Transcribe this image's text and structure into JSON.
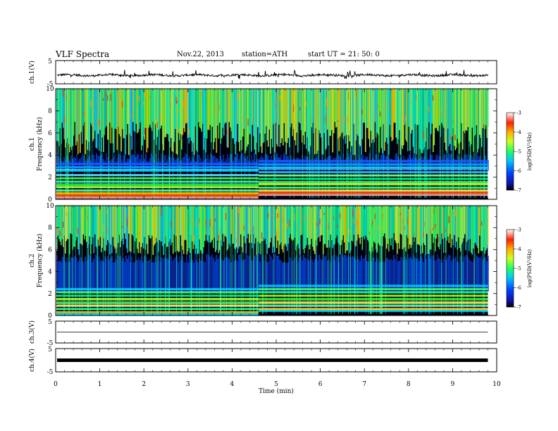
{
  "header": {
    "title": "VLF  Spectra",
    "date": "Nov.22, 2013",
    "station": "station=ATH",
    "start": "start  UT  =   21: 50: 0"
  },
  "chart_data": [
    {
      "type": "line",
      "panel": "ch1-waveform",
      "ylabel": "ch.1(V)",
      "ylim": [
        -5,
        5
      ],
      "yticks": [
        "5",
        "-5"
      ],
      "xlim": [
        0,
        10
      ],
      "baseline": -1.3,
      "spike_range": [
        -3.0,
        1.0
      ]
    },
    {
      "type": "heatmap",
      "panel": "ch1-spectrogram",
      "ylabel_top": "ch.1",
      "ylabel": "Frequency  (kHz)",
      "ylim": [
        0,
        10
      ],
      "yticks": [
        "0",
        "2",
        "4",
        "6",
        "8",
        "10"
      ],
      "xlim": [
        0,
        9.8
      ],
      "colorbar": {
        "label": "log(PSD(V²/Hz)",
        "ticks": [
          "-3",
          "-4",
          "-5",
          "-6",
          "-7"
        ],
        "range": [
          -7,
          -3
        ]
      },
      "band_change_min": 4.6
    },
    {
      "type": "heatmap",
      "panel": "ch2-spectrogram",
      "ylabel_top": "ch.2",
      "ylabel": "Frequency  (kHz)",
      "ylim": [
        0,
        10
      ],
      "yticks": [
        "0",
        "2",
        "4",
        "6",
        "8",
        "10"
      ],
      "xlim": [
        0,
        9.8
      ],
      "colorbar": {
        "label": "log(PSD(V²/Hz)",
        "ticks": [
          "-3",
          "-4",
          "-5",
          "-6",
          "-7"
        ],
        "range": [
          -7,
          -3
        ]
      },
      "band_change_min": 4.6
    },
    {
      "type": "line",
      "panel": "ch3-waveform",
      "ylabel": "ch.3(V)",
      "ylim": [
        -5,
        5
      ],
      "yticks": [
        "5",
        "-5"
      ],
      "baseline": 0
    },
    {
      "type": "line",
      "panel": "ch4-waveform",
      "ylabel": "ch.4(V)",
      "ylim": [
        -5,
        5
      ],
      "yticks": [
        "5",
        "-5"
      ],
      "baseline": 0
    }
  ],
  "xaxis": {
    "label": "Time  (min)",
    "ticks": [
      "0",
      "1",
      "2",
      "3",
      "4",
      "5",
      "6",
      "7",
      "8",
      "9",
      "10"
    ]
  }
}
